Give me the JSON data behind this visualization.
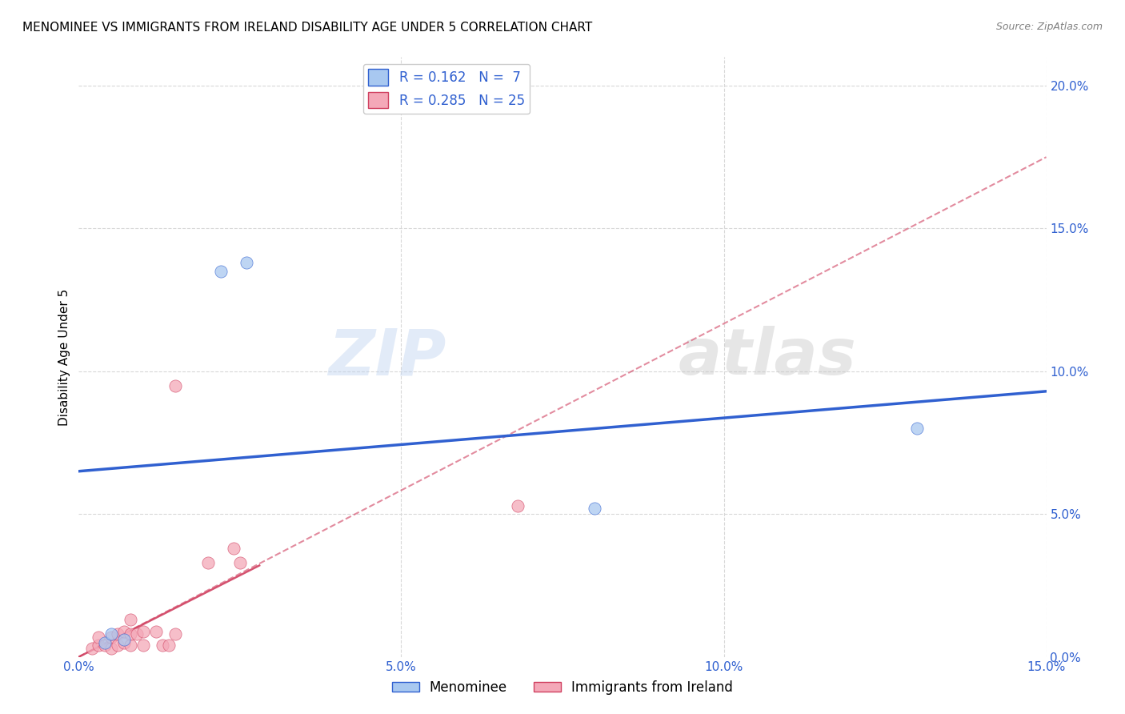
{
  "title": "MENOMINEE VS IMMIGRANTS FROM IRELAND DISABILITY AGE UNDER 5 CORRELATION CHART",
  "source": "Source: ZipAtlas.com",
  "xlim": [
    0.0,
    0.15
  ],
  "ylim": [
    0.0,
    0.21
  ],
  "ylabel": "Disability Age Under 5",
  "legend_r1": "R = 0.162",
  "legend_n1": "N =  7",
  "legend_r2": "R = 0.285",
  "legend_n2": "N = 25",
  "menominee_color": "#a8c8f0",
  "ireland_color": "#f4a8b8",
  "trendline_menominee_color": "#3060d0",
  "trendline_ireland_color": "#d04060",
  "watermark_zip": "ZIP",
  "watermark_atlas": "atlas",
  "menominee_points": [
    [
      0.004,
      0.005
    ],
    [
      0.005,
      0.008
    ],
    [
      0.007,
      0.006
    ],
    [
      0.022,
      0.135
    ],
    [
      0.026,
      0.138
    ],
    [
      0.08,
      0.052
    ],
    [
      0.13,
      0.08
    ]
  ],
  "ireland_points": [
    [
      0.002,
      0.003
    ],
    [
      0.003,
      0.004
    ],
    [
      0.003,
      0.007
    ],
    [
      0.004,
      0.004
    ],
    [
      0.005,
      0.003
    ],
    [
      0.005,
      0.007
    ],
    [
      0.006,
      0.004
    ],
    [
      0.006,
      0.008
    ],
    [
      0.007,
      0.005
    ],
    [
      0.007,
      0.009
    ],
    [
      0.008,
      0.004
    ],
    [
      0.008,
      0.008
    ],
    [
      0.008,
      0.013
    ],
    [
      0.009,
      0.008
    ],
    [
      0.01,
      0.004
    ],
    [
      0.01,
      0.009
    ],
    [
      0.012,
      0.009
    ],
    [
      0.013,
      0.004
    ],
    [
      0.014,
      0.004
    ],
    [
      0.015,
      0.008
    ],
    [
      0.02,
      0.033
    ],
    [
      0.024,
      0.038
    ],
    [
      0.025,
      0.033
    ],
    [
      0.015,
      0.095
    ],
    [
      0.068,
      0.053
    ]
  ],
  "menominee_trendline": [
    [
      0.0,
      0.065
    ],
    [
      0.15,
      0.093
    ]
  ],
  "ireland_trendline": [
    [
      0.0,
      0.0
    ],
    [
      0.15,
      0.175
    ]
  ],
  "background_color": "#ffffff",
  "grid_color": "#d8d8d8",
  "title_fontsize": 11,
  "axis_label_fontsize": 11,
  "tick_fontsize": 11,
  "tick_color": "#3060d0",
  "marker_size": 120
}
